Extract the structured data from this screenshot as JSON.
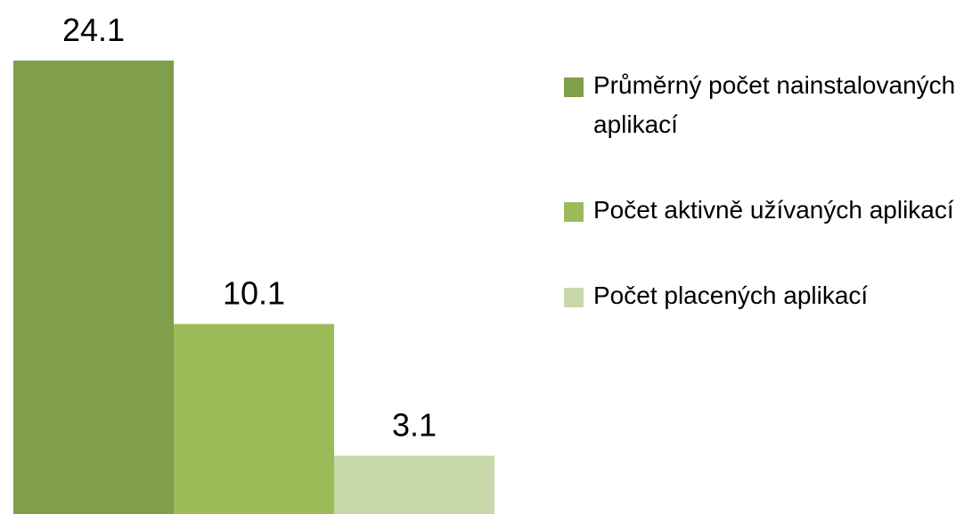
{
  "chart_data": {
    "type": "bar",
    "series": [
      {
        "name": "Průměrný počet nainstalovaných aplikací",
        "color": "#7f9f4b",
        "values": [
          24.1
        ]
      },
      {
        "name": "Počet aktivně užívaných aplikací",
        "color": "#9bbb59",
        "values": [
          10.1
        ]
      },
      {
        "name": "Počet placených aplikací",
        "color": "#c8d7aa",
        "values": [
          3.1
        ]
      }
    ],
    "legend": "right"
  }
}
